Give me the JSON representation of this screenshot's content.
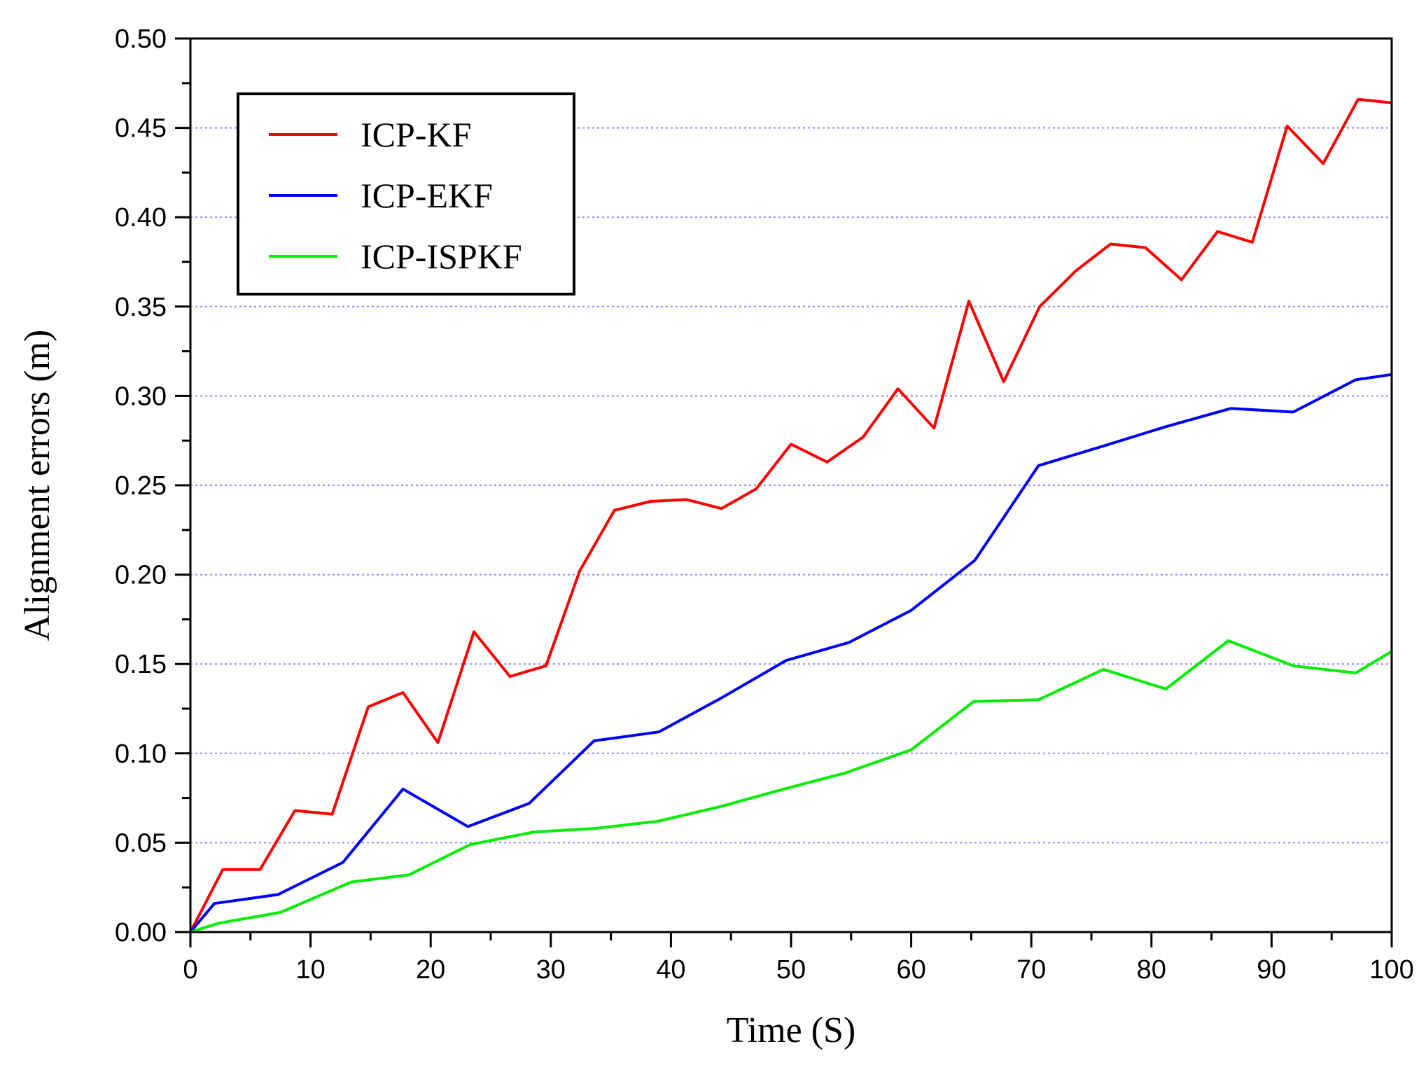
{
  "chart_data": {
    "type": "line",
    "title": "",
    "xlabel": "Time (S)",
    "ylabel": "Alignment errors (m)",
    "xlim": [
      0,
      100
    ],
    "ylim": [
      0,
      0.5
    ],
    "xticks": [
      "0",
      "10",
      "20",
      "30",
      "40",
      "50",
      "60",
      "70",
      "80",
      "90",
      "100"
    ],
    "yticks": [
      "0.00",
      "0.05",
      "0.10",
      "0.15",
      "0.20",
      "0.25",
      "0.30",
      "0.35",
      "0.40",
      "0.45",
      "0.50"
    ],
    "grid": "horizontal dotted",
    "legend_position": "top-left",
    "series": [
      {
        "name": "ICP-KF",
        "color": "#ff0000",
        "x": [
          0,
          2.7,
          5.8,
          8.7,
          11.8,
          14.8,
          17.7,
          20.6,
          23.6,
          26.6,
          29.6,
          32.4,
          35.3,
          38.3,
          41.3,
          44.2,
          47.1,
          50.0,
          53.0,
          56.0,
          58.9,
          61.9,
          64.8,
          67.7,
          70.7,
          73.7,
          76.6,
          79.5,
          82.5,
          85.5,
          88.4,
          91.3,
          94.3,
          97.2,
          100
        ],
        "y": [
          0.0,
          0.035,
          0.035,
          0.068,
          0.066,
          0.126,
          0.134,
          0.106,
          0.168,
          0.143,
          0.149,
          0.202,
          0.236,
          0.241,
          0.242,
          0.237,
          0.248,
          0.273,
          0.263,
          0.277,
          0.304,
          0.282,
          0.353,
          0.308,
          0.35,
          0.37,
          0.385,
          0.383,
          0.365,
          0.392,
          0.386,
          0.451,
          0.43,
          0.466,
          0.464
        ]
      },
      {
        "name": "ICP-EKF",
        "color": "#0000ff",
        "x": [
          0,
          2.0,
          7.3,
          12.7,
          17.7,
          23.1,
          28.2,
          33.6,
          39.0,
          44.2,
          49.6,
          54.8,
          60.0,
          65.3,
          70.6,
          76.0,
          81.3,
          86.6,
          91.8,
          97.0,
          100
        ],
        "y": [
          0.0,
          0.016,
          0.021,
          0.039,
          0.08,
          0.059,
          0.072,
          0.107,
          0.112,
          0.131,
          0.152,
          0.162,
          0.18,
          0.208,
          0.261,
          0.272,
          0.283,
          0.293,
          0.291,
          0.309,
          0.312
        ]
      },
      {
        "name": "ICP-ISPKF",
        "color": "#00ee00",
        "x": [
          0,
          2.4,
          7.5,
          13.4,
          18.2,
          23.3,
          28.6,
          33.7,
          38.9,
          44.0,
          49.4,
          54.5,
          60.0,
          65.2,
          70.6,
          76.0,
          81.2,
          86.4,
          91.8,
          97.0,
          100
        ],
        "y": [
          0.0,
          0.005,
          0.011,
          0.028,
          0.032,
          0.049,
          0.056,
          0.058,
          0.062,
          0.07,
          0.08,
          0.089,
          0.102,
          0.129,
          0.13,
          0.147,
          0.136,
          0.163,
          0.149,
          0.145,
          0.157
        ]
      }
    ]
  }
}
